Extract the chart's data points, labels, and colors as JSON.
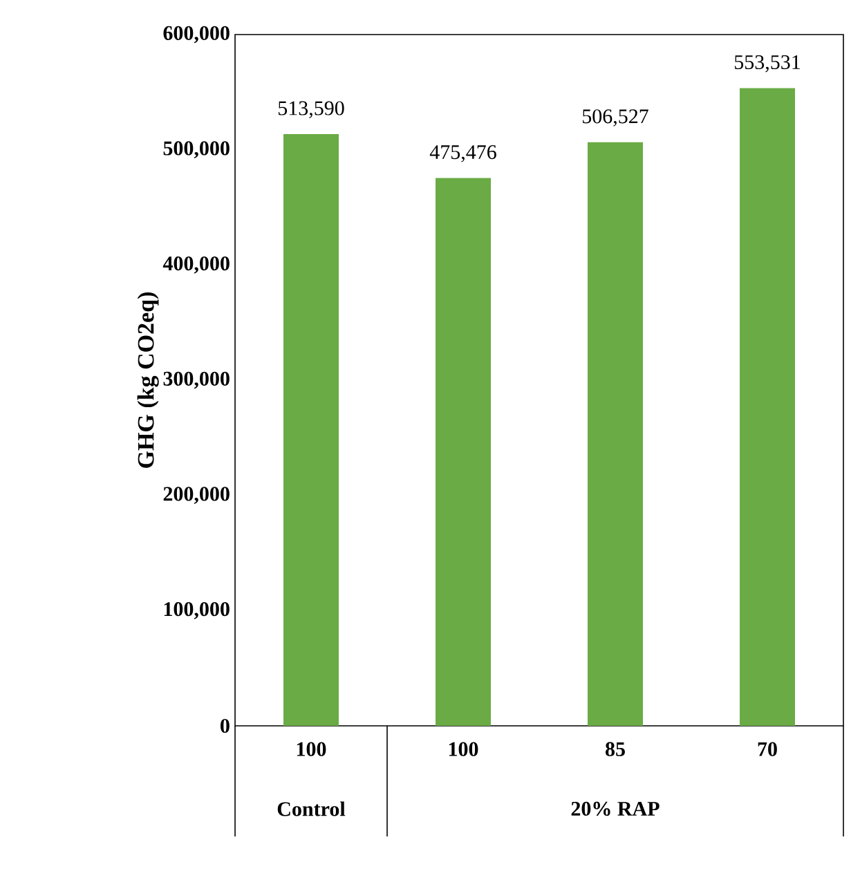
{
  "chart_data": {
    "type": "bar",
    "ylabel": "GHG (kg CO2eq)",
    "categories": [
      "100",
      "100",
      "85",
      "70"
    ],
    "values": [
      513590,
      475476,
      506527,
      553531
    ],
    "value_labels": [
      "513,590",
      "475,476",
      "506,527",
      "553,531"
    ],
    "color": "#6aab45",
    "ylim": [
      0,
      600000
    ],
    "yticks": [
      {
        "value": 0,
        "label": "0"
      },
      {
        "value": 100000,
        "label": "100,000"
      },
      {
        "value": 200000,
        "label": "200,000"
      },
      {
        "value": 300000,
        "label": "300,000"
      },
      {
        "value": 400000,
        "label": "400,000"
      },
      {
        "value": 500000,
        "label": "500,000"
      },
      {
        "value": 600000,
        "label": "600,000"
      }
    ],
    "annotations": [
      "Control",
      "20% RAP"
    ],
    "grid": false
  }
}
